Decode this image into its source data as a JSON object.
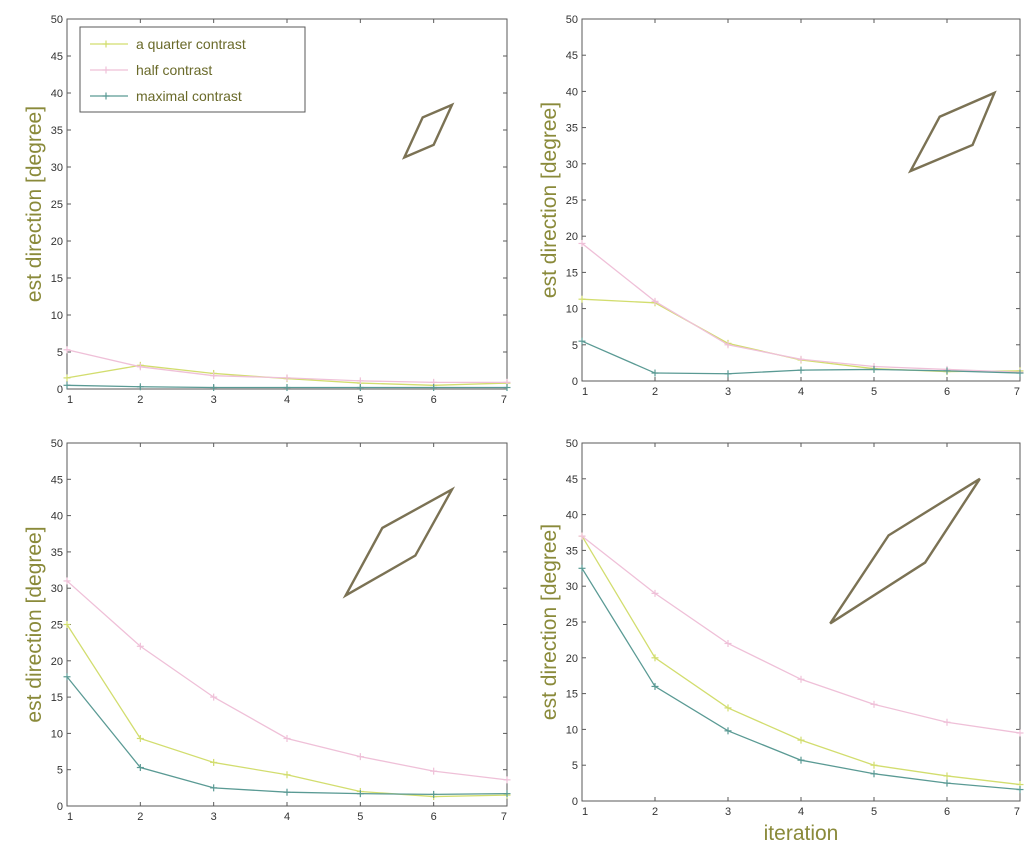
{
  "colors": {
    "quarter": "#d2dd6e",
    "half": "#efc0d8",
    "maximal": "#5a9a94",
    "rhombus": "#7b7254",
    "axis": "#5a5a5a",
    "label": "#8a8a3a"
  },
  "legend_items": [
    {
      "label": "a quarter contrast",
      "key": "quarter"
    },
    {
      "label": "half contrast",
      "key": "half"
    },
    {
      "label": "maximal contrast",
      "key": "maximal"
    }
  ],
  "chart_data": [
    {
      "type": "line",
      "ylabel": "est direction [degree]",
      "xlabel": "",
      "xlim": [
        1,
        7
      ],
      "ylim": [
        0,
        50
      ],
      "x": [
        1,
        2,
        3,
        4,
        5,
        6,
        7
      ],
      "xticks": [
        1,
        2,
        3,
        4,
        5,
        6,
        7
      ],
      "yticks": [
        0,
        5,
        10,
        15,
        20,
        25,
        30,
        35,
        40,
        45,
        50
      ],
      "legend": "top-left",
      "rhombus": [
        [
          5.6,
          31.3
        ],
        [
          5.85,
          36.7
        ],
        [
          6.25,
          38.4
        ],
        [
          6.0,
          33.0
        ]
      ],
      "series": [
        {
          "name": "a quarter contrast",
          "key": "quarter",
          "values": [
            1.5,
            3.2,
            2.1,
            1.4,
            0.8,
            0.5,
            0.8
          ]
        },
        {
          "name": "half contrast",
          "key": "half",
          "values": [
            5.3,
            3.0,
            1.8,
            1.5,
            1.1,
            0.9,
            0.9
          ]
        },
        {
          "name": "maximal contrast",
          "key": "maximal",
          "values": [
            0.5,
            0.3,
            0.2,
            0.2,
            0.2,
            0.2,
            0.2
          ]
        }
      ]
    },
    {
      "type": "line",
      "ylabel": "est direction [degree]",
      "xlabel": "",
      "xlim": [
        1,
        7
      ],
      "ylim": [
        0,
        50
      ],
      "x": [
        1,
        2,
        3,
        4,
        5,
        6,
        7
      ],
      "xticks": [
        1,
        2,
        3,
        4,
        5,
        6,
        7
      ],
      "yticks": [
        0,
        5,
        10,
        15,
        20,
        25,
        30,
        35,
        40,
        45,
        50
      ],
      "rhombus": [
        [
          5.5,
          29.0
        ],
        [
          5.9,
          36.5
        ],
        [
          6.65,
          39.8
        ],
        [
          6.35,
          32.6
        ]
      ],
      "series": [
        {
          "name": "a quarter contrast",
          "key": "quarter",
          "values": [
            11.3,
            10.8,
            5.2,
            2.9,
            1.7,
            1.3,
            1.4
          ]
        },
        {
          "name": "half contrast",
          "key": "half",
          "values": [
            19.0,
            11.0,
            5.0,
            3.0,
            2.0,
            1.6,
            1.2
          ]
        },
        {
          "name": "maximal contrast",
          "key": "maximal",
          "values": [
            5.5,
            1.1,
            1.0,
            1.5,
            1.6,
            1.4,
            1.1
          ]
        }
      ]
    },
    {
      "type": "line",
      "ylabel": "est direction [degree]",
      "xlabel": "",
      "xlim": [
        1,
        7
      ],
      "ylim": [
        0,
        50
      ],
      "x": [
        1,
        2,
        3,
        4,
        5,
        6,
        7
      ],
      "xticks": [
        1,
        2,
        3,
        4,
        5,
        6,
        7
      ],
      "yticks": [
        0,
        5,
        10,
        15,
        20,
        25,
        30,
        35,
        40,
        45,
        50
      ],
      "rhombus": [
        [
          4.8,
          29.0
        ],
        [
          5.3,
          38.3
        ],
        [
          6.25,
          43.6
        ],
        [
          5.75,
          34.5
        ]
      ],
      "series": [
        {
          "name": "a quarter contrast",
          "key": "quarter",
          "values": [
            25.0,
            9.3,
            6.0,
            4.3,
            2.0,
            1.3,
            1.5
          ]
        },
        {
          "name": "half contrast",
          "key": "half",
          "values": [
            31.0,
            22.0,
            15.0,
            9.3,
            6.8,
            4.8,
            3.6
          ]
        },
        {
          "name": "maximal contrast",
          "key": "maximal",
          "values": [
            17.8,
            5.3,
            2.5,
            1.9,
            1.7,
            1.6,
            1.7
          ]
        }
      ]
    },
    {
      "type": "line",
      "ylabel": "est direction [degree]",
      "xlabel": "iteration",
      "xlim": [
        1,
        7
      ],
      "ylim": [
        0,
        50
      ],
      "x": [
        1,
        2,
        3,
        4,
        5,
        6,
        7
      ],
      "xticks": [
        1,
        2,
        3,
        4,
        5,
        6,
        7
      ],
      "yticks": [
        0,
        5,
        10,
        15,
        20,
        25,
        30,
        35,
        40,
        45,
        50
      ],
      "rhombus": [
        [
          4.4,
          24.8
        ],
        [
          5.2,
          37.1
        ],
        [
          6.45,
          45.0
        ],
        [
          5.7,
          33.3
        ]
      ],
      "series": [
        {
          "name": "a quarter contrast",
          "key": "quarter",
          "values": [
            37.0,
            20.0,
            13.0,
            8.5,
            5.0,
            3.5,
            2.3
          ]
        },
        {
          "name": "half contrast",
          "key": "half",
          "values": [
            37.0,
            29.0,
            22.0,
            17.0,
            13.5,
            11.0,
            9.5
          ]
        },
        {
          "name": "maximal contrast",
          "key": "maximal",
          "values": [
            32.5,
            16.0,
            9.8,
            5.7,
            3.8,
            2.5,
            1.6
          ]
        }
      ]
    }
  ]
}
